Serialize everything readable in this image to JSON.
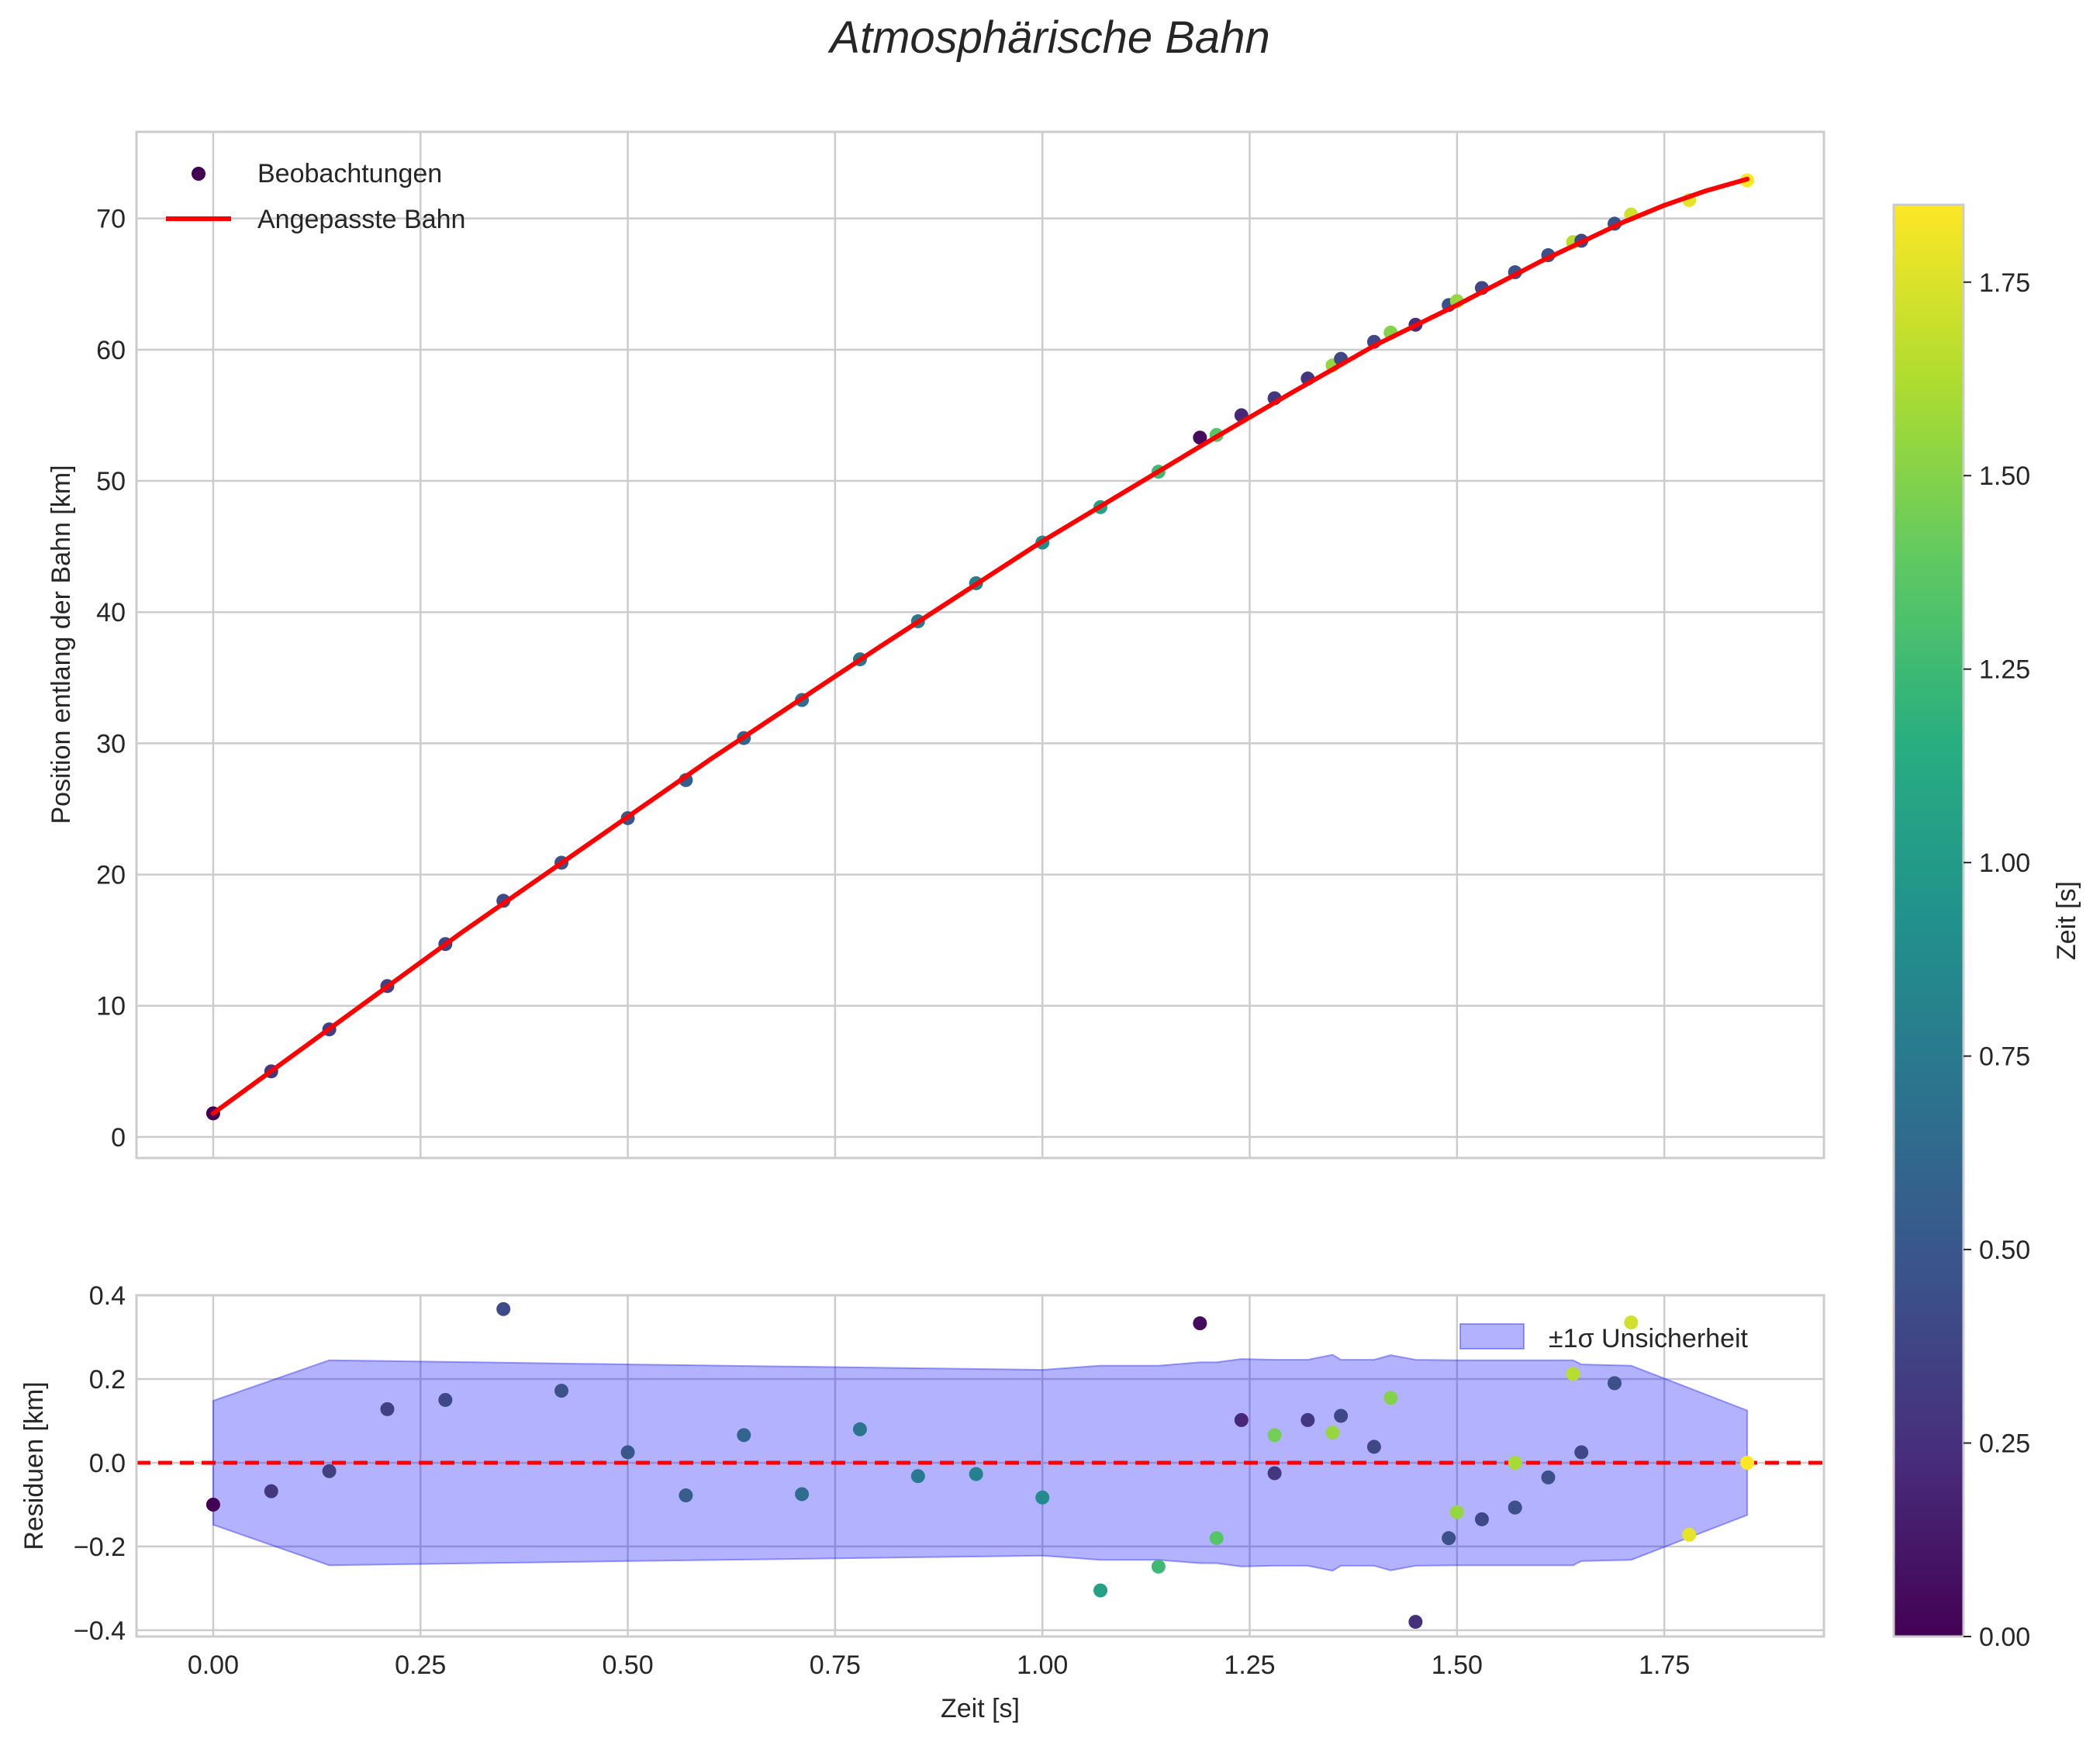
{
  "chart_data": [
    {
      "type": "scatter",
      "title": "Atmosphärische Bahn",
      "xlabel": "",
      "ylabel": "Position entlang der Bahn [km]",
      "xlim": [
        -0.0925,
        1.9425
      ],
      "ylim": [
        -1.6,
        76.6
      ],
      "xticks": [
        0.0,
        0.25,
        0.5,
        0.75,
        1.0,
        1.25,
        1.5,
        1.75
      ],
      "yticks": [
        0,
        10,
        20,
        30,
        40,
        50,
        60,
        70
      ],
      "ytick_labels": [
        "0",
        "10",
        "20",
        "30",
        "40",
        "50",
        "60",
        "70"
      ],
      "grid": true,
      "legend": {
        "position": "top-left",
        "entries": [
          "Beobachtungen",
          "Angepasste Bahn"
        ]
      },
      "observations": {
        "name": "Beobachtungen",
        "color_by": "Zeit [s]",
        "points": [
          {
            "x": 0.0,
            "y": 1.8,
            "c": 0.0
          },
          {
            "x": 0.07,
            "y": 5.0,
            "c": 0.3
          },
          {
            "x": 0.14,
            "y": 8.2,
            "c": 0.35
          },
          {
            "x": 0.21,
            "y": 11.5,
            "c": 0.35
          },
          {
            "x": 0.28,
            "y": 14.7,
            "c": 0.4
          },
          {
            "x": 0.35,
            "y": 18.0,
            "c": 0.42
          },
          {
            "x": 0.42,
            "y": 20.9,
            "c": 0.45
          },
          {
            "x": 0.5,
            "y": 24.3,
            "c": 0.5
          },
          {
            "x": 0.57,
            "y": 27.2,
            "c": 0.55
          },
          {
            "x": 0.64,
            "y": 30.4,
            "c": 0.6
          },
          {
            "x": 0.71,
            "y": 33.3,
            "c": 0.65
          },
          {
            "x": 0.78,
            "y": 36.4,
            "c": 0.7
          },
          {
            "x": 0.85,
            "y": 39.3,
            "c": 0.75
          },
          {
            "x": 0.92,
            "y": 42.2,
            "c": 0.8
          },
          {
            "x": 1.0,
            "y": 45.3,
            "c": 0.88
          },
          {
            "x": 1.07,
            "y": 48.0,
            "c": 1.05
          },
          {
            "x": 1.14,
            "y": 50.7,
            "c": 1.25
          },
          {
            "x": 1.19,
            "y": 53.3,
            "c": 0.05
          },
          {
            "x": 1.21,
            "y": 53.5,
            "c": 1.35
          },
          {
            "x": 1.24,
            "y": 55.0,
            "c": 0.2
          },
          {
            "x": 1.28,
            "y": 56.3,
            "c": 0.3
          },
          {
            "x": 1.32,
            "y": 57.8,
            "c": 0.3
          },
          {
            "x": 1.35,
            "y": 58.8,
            "c": 1.55
          },
          {
            "x": 1.36,
            "y": 59.3,
            "c": 0.4
          },
          {
            "x": 1.4,
            "y": 60.6,
            "c": 0.4
          },
          {
            "x": 1.42,
            "y": 61.3,
            "c": 1.5
          },
          {
            "x": 1.45,
            "y": 61.9,
            "c": 0.25
          },
          {
            "x": 1.49,
            "y": 63.4,
            "c": 0.45
          },
          {
            "x": 1.5,
            "y": 63.7,
            "c": 1.55
          },
          {
            "x": 1.53,
            "y": 64.7,
            "c": 0.4
          },
          {
            "x": 1.57,
            "y": 65.9,
            "c": 0.45
          },
          {
            "x": 1.61,
            "y": 67.2,
            "c": 0.45
          },
          {
            "x": 1.64,
            "y": 68.2,
            "c": 1.65
          },
          {
            "x": 1.65,
            "y": 68.3,
            "c": 0.4
          },
          {
            "x": 1.69,
            "y": 69.6,
            "c": 0.45
          },
          {
            "x": 1.71,
            "y": 70.3,
            "c": 1.72
          },
          {
            "x": 1.78,
            "y": 71.4,
            "c": 1.78
          },
          {
            "x": 1.85,
            "y": 72.9,
            "c": 1.85
          }
        ]
      },
      "fit": {
        "name": "Angepasste Bahn",
        "color": "#ff0000",
        "x": [
          0.0,
          0.1,
          0.2,
          0.3,
          0.4,
          0.5,
          0.6,
          0.7,
          0.8,
          0.9,
          1.0,
          1.1,
          1.2,
          1.3,
          1.4,
          1.5,
          1.6,
          1.7,
          1.75,
          1.8,
          1.85
        ],
        "y": [
          1.8,
          6.4,
          11.0,
          15.6,
          20.0,
          24.4,
          28.8,
          33.0,
          37.2,
          41.3,
          45.4,
          49.2,
          53.0,
          56.7,
          60.3,
          63.4,
          66.7,
          69.7,
          71.0,
          72.1,
          73.0
        ]
      }
    },
    {
      "type": "scatter",
      "title": "",
      "xlabel": "Zeit [s]",
      "ylabel": "Residuen [km]",
      "xlim": [
        -0.0925,
        1.9425
      ],
      "ylim": [
        -0.415,
        0.4
      ],
      "xticks": [
        0.0,
        0.25,
        0.5,
        0.75,
        1.0,
        1.25,
        1.5,
        1.75
      ],
      "xtick_labels": [
        "0.00",
        "0.25",
        "0.50",
        "0.75",
        "1.00",
        "1.25",
        "1.50",
        "1.75"
      ],
      "yticks": [
        -0.4,
        -0.2,
        0.0,
        0.2,
        0.4
      ],
      "ytick_labels": [
        "−0.4",
        "−0.2",
        "0.0",
        "0.2",
        "0.4"
      ],
      "grid": true,
      "legend": {
        "position": "top-right",
        "entries": [
          "±1σ Unsicherheit"
        ]
      },
      "zero_line": {
        "y": 0,
        "color": "#ff0000",
        "style": "dashed"
      },
      "band": {
        "name": "±1σ Unsicherheit",
        "color": "#0000ff",
        "x": [
          0.0,
          0.14,
          0.5,
          1.0,
          1.07,
          1.14,
          1.19,
          1.21,
          1.24,
          1.28,
          1.32,
          1.35,
          1.36,
          1.4,
          1.42,
          1.45,
          1.5,
          1.57,
          1.64,
          1.65,
          1.71,
          1.85
        ],
        "sigma": [
          0.148,
          0.245,
          0.235,
          0.222,
          0.232,
          0.232,
          0.24,
          0.24,
          0.248,
          0.246,
          0.246,
          0.258,
          0.246,
          0.246,
          0.257,
          0.246,
          0.245,
          0.245,
          0.245,
          0.235,
          0.232,
          0.125
        ]
      },
      "residuals": [
        {
          "x": 0.0,
          "y": -0.1,
          "c": 0.0
        },
        {
          "x": 0.07,
          "y": -0.068,
          "c": 0.3
        },
        {
          "x": 0.14,
          "y": -0.02,
          "c": 0.35
        },
        {
          "x": 0.21,
          "y": 0.128,
          "c": 0.35
        },
        {
          "x": 0.28,
          "y": 0.15,
          "c": 0.4
        },
        {
          "x": 0.35,
          "y": 0.367,
          "c": 0.42
        },
        {
          "x": 0.42,
          "y": 0.172,
          "c": 0.45
        },
        {
          "x": 0.5,
          "y": 0.025,
          "c": 0.5
        },
        {
          "x": 0.57,
          "y": -0.078,
          "c": 0.55
        },
        {
          "x": 0.64,
          "y": 0.066,
          "c": 0.6
        },
        {
          "x": 0.71,
          "y": -0.075,
          "c": 0.65
        },
        {
          "x": 0.78,
          "y": 0.08,
          "c": 0.7
        },
        {
          "x": 0.85,
          "y": -0.032,
          "c": 0.75
        },
        {
          "x": 0.92,
          "y": -0.027,
          "c": 0.8
        },
        {
          "x": 1.0,
          "y": -0.083,
          "c": 0.88
        },
        {
          "x": 1.07,
          "y": -0.305,
          "c": 1.05
        },
        {
          "x": 1.14,
          "y": -0.248,
          "c": 1.25
        },
        {
          "x": 1.19,
          "y": 0.333,
          "c": 0.05
        },
        {
          "x": 1.21,
          "y": -0.18,
          "c": 1.35
        },
        {
          "x": 1.24,
          "y": 0.102,
          "c": 0.2
        },
        {
          "x": 1.28,
          "y": -0.025,
          "c": 0.3
        },
        {
          "x": 1.28,
          "y": 0.066,
          "c": 1.45
        },
        {
          "x": 1.32,
          "y": 0.102,
          "c": 0.3
        },
        {
          "x": 1.35,
          "y": 0.072,
          "c": 1.55
        },
        {
          "x": 1.36,
          "y": 0.112,
          "c": 0.4
        },
        {
          "x": 1.4,
          "y": 0.038,
          "c": 0.4
        },
        {
          "x": 1.42,
          "y": 0.155,
          "c": 1.5
        },
        {
          "x": 1.45,
          "y": -0.38,
          "c": 0.25
        },
        {
          "x": 1.49,
          "y": -0.18,
          "c": 0.45
        },
        {
          "x": 1.5,
          "y": -0.118,
          "c": 1.55
        },
        {
          "x": 1.53,
          "y": -0.135,
          "c": 0.4
        },
        {
          "x": 1.57,
          "y": 0.0,
          "c": 1.6
        },
        {
          "x": 1.57,
          "y": -0.107,
          "c": 0.45
        },
        {
          "x": 1.61,
          "y": -0.035,
          "c": 0.45
        },
        {
          "x": 1.64,
          "y": 0.212,
          "c": 1.65
        },
        {
          "x": 1.65,
          "y": 0.025,
          "c": 0.4
        },
        {
          "x": 1.69,
          "y": 0.19,
          "c": 0.45
        },
        {
          "x": 1.71,
          "y": 0.335,
          "c": 1.72
        },
        {
          "x": 1.78,
          "y": -0.172,
          "c": 1.78
        },
        {
          "x": 1.85,
          "y": 0.0,
          "c": 1.85
        }
      ]
    }
  ],
  "colorbar": {
    "label": "Zeit [s]",
    "colormap": "viridis",
    "range": [
      0.0,
      1.85
    ],
    "ticks": [
      0.0,
      0.25,
      0.5,
      0.75,
      1.0,
      1.25,
      1.5,
      1.75
    ],
    "tick_labels": [
      "0.00",
      "0.25",
      "0.50",
      "0.75",
      "1.00",
      "1.25",
      "1.50",
      "1.75"
    ]
  },
  "colors": {
    "grid": "#cccccc",
    "spine": "#cccccc",
    "fit": "#ff0000",
    "band": "#0000ff"
  }
}
